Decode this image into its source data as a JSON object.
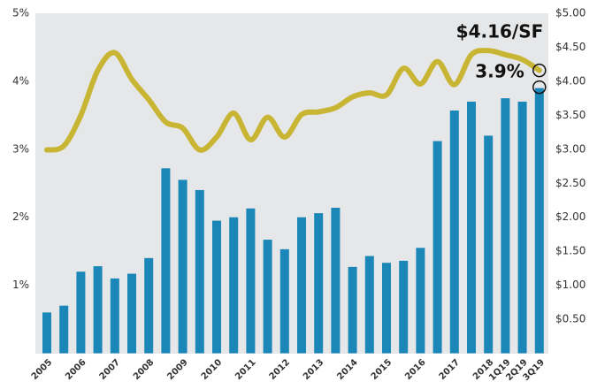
{
  "chart_data": {
    "type": "bar_line",
    "categories": [
      "2005",
      null,
      "2006",
      null,
      "2007",
      null,
      "2008",
      null,
      "2009",
      null,
      "2010",
      null,
      "2011",
      null,
      "2012",
      null,
      "2013",
      null,
      "2014",
      null,
      "2015",
      null,
      "2016",
      null,
      "2017",
      null,
      "2018",
      "1Q19",
      "2Q19",
      "3Q19"
    ],
    "series": [
      {
        "type": "bar",
        "color": "#1a87b8",
        "values": [
          0.6,
          0.7,
          1.2,
          1.28,
          1.1,
          1.17,
          1.4,
          2.72,
          2.55,
          2.4,
          1.95,
          2.0,
          2.13,
          1.67,
          1.53,
          2.0,
          2.06,
          2.14,
          1.27,
          1.43,
          1.33,
          1.36,
          1.55,
          3.12,
          3.57,
          3.7,
          3.2,
          3.75,
          3.7,
          3.9
        ]
      },
      {
        "type": "line",
        "axis": "y2",
        "color": "#c9b534",
        "values": [
          2.99,
          3.05,
          3.5,
          4.16,
          4.42,
          4.03,
          3.73,
          3.4,
          3.31,
          2.99,
          3.18,
          3.53,
          3.14,
          3.47,
          3.18,
          3.51,
          3.55,
          3.61,
          3.77,
          3.83,
          3.8,
          4.19,
          3.96,
          4.29,
          3.95,
          4.39,
          4.45,
          4.39,
          4.32,
          4.16
        ]
      }
    ],
    "annotations": [
      "$4.16/SF",
      "3.9%"
    ],
    "ylim": [
      0,
      5
    ],
    "yticks": [
      {
        "value": 1,
        "label": "1%"
      },
      {
        "value": 2,
        "label": "2%"
      },
      {
        "value": 3,
        "label": "3%"
      },
      {
        "value": 4,
        "label": "4%"
      },
      {
        "value": 5,
        "label": "5%"
      }
    ],
    "y2lim": [
      0,
      5
    ],
    "y2ticks": [
      {
        "value": 0.5,
        "label": "$0.50"
      },
      {
        "value": 1,
        "label": "$1.00"
      },
      {
        "value": 1.5,
        "label": "$1.50"
      },
      {
        "value": 2,
        "label": "$2.00"
      },
      {
        "value": 2.5,
        "label": "$2.50"
      },
      {
        "value": 3,
        "label": "$3.00"
      },
      {
        "value": 3.5,
        "label": "$3.50"
      },
      {
        "value": 4,
        "label": "$4.00"
      },
      {
        "value": 4.5,
        "label": "$4.50"
      },
      {
        "value": 5,
        "label": "$5.00"
      }
    ],
    "grid": false
  }
}
